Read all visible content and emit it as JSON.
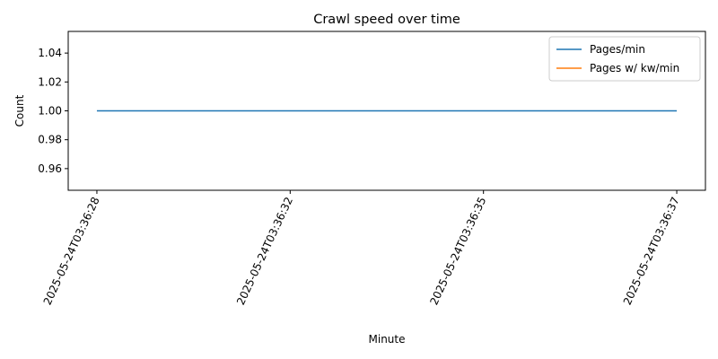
{
  "chart_data": {
    "type": "line",
    "title": "Crawl speed over time",
    "xlabel": "Minute",
    "ylabel": "Count",
    "x": [
      "2025-05-24T03:36:28",
      "2025-05-24T03:36:32",
      "2025-05-24T03:36:35",
      "2025-05-24T03:36:37"
    ],
    "series": [
      {
        "name": "Pages/min",
        "values": [
          1,
          1,
          1,
          1
        ],
        "color": "#1f77b4"
      },
      {
        "name": "Pages w/ kw/min",
        "values": [
          null,
          null,
          null,
          null
        ],
        "color": "#ff7f0e"
      }
    ],
    "ylim": [
      0.945,
      1.055
    ],
    "yticks": [
      0.96,
      0.98,
      1.0,
      1.02,
      1.04
    ],
    "ytick_labels": [
      "0.96",
      "0.98",
      "1.00",
      "1.02",
      "1.04"
    ],
    "legend_position": "top-right",
    "grid": false
  }
}
